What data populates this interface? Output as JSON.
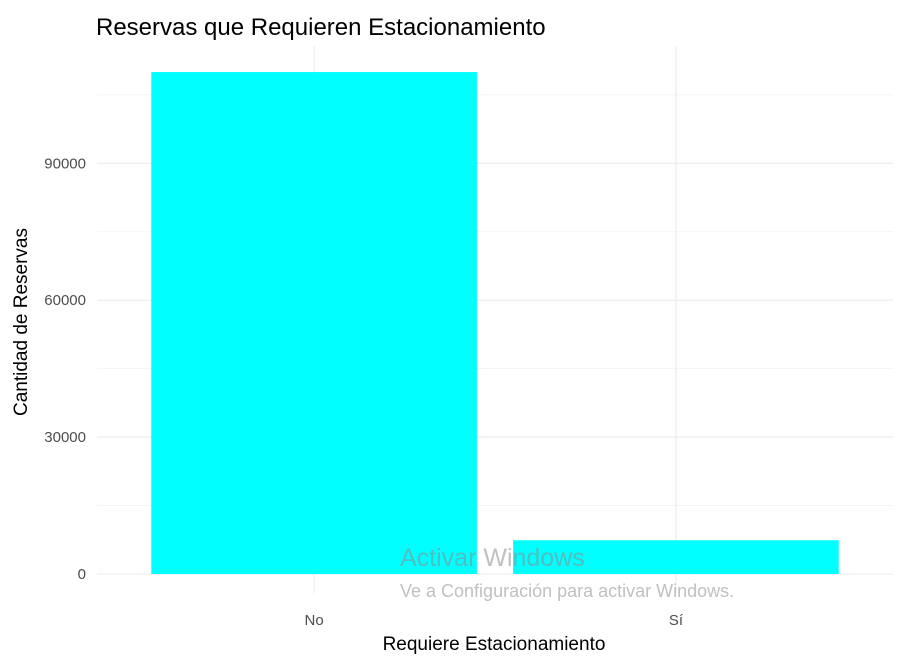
{
  "chart_data": {
    "type": "bar",
    "title": "Reservas que Requieren Estacionamiento",
    "xlabel": "Requiere Estacionamiento",
    "ylabel": "Cantidad de Reservas",
    "categories": [
      "No",
      "Sí"
    ],
    "values": [
      110000,
      7400
    ],
    "ylim": [
      0,
      120000
    ],
    "yticks": [
      0,
      30000,
      60000,
      90000
    ],
    "ytick_labels": [
      "0",
      "30000",
      "60000",
      "90000"
    ],
    "grid": true,
    "bar_color": "#00ffff",
    "legend": "none"
  },
  "watermark": {
    "title": "Activar Windows",
    "subtitle": "Ve a Configuración para activar Windows."
  }
}
